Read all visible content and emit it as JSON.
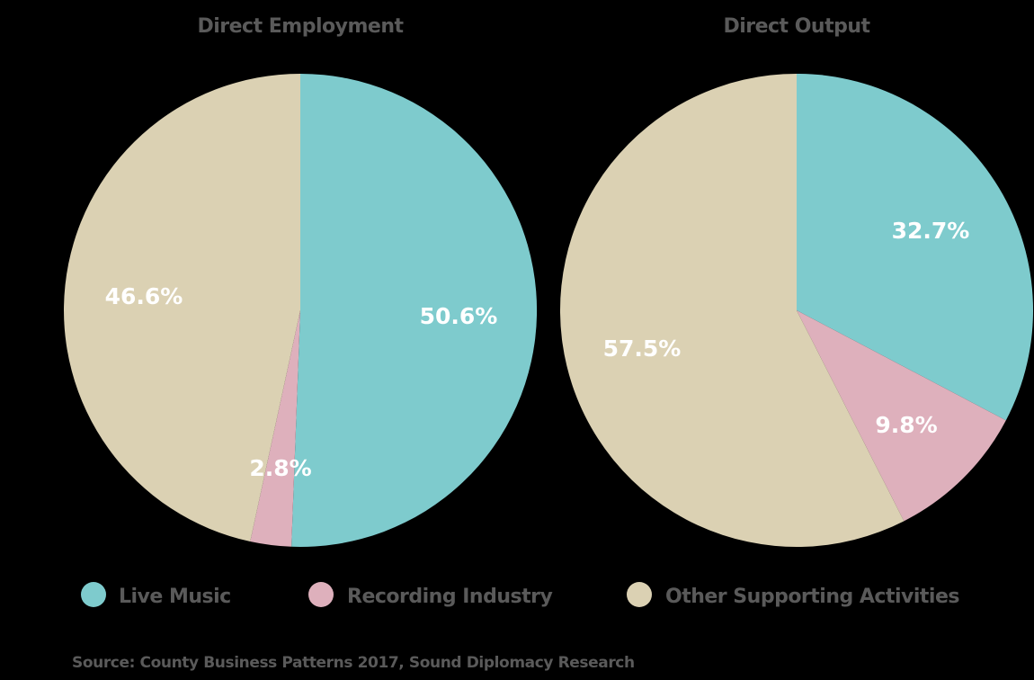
{
  "chart_data": [
    {
      "type": "pie",
      "title": "Direct Employment",
      "slices": [
        {
          "label": "Live Music",
          "value": 50.6,
          "display": "50.6%",
          "color": "#7ecbcd"
        },
        {
          "label": "Recording Industry",
          "value": 2.8,
          "display": "2.8%",
          "color": "#deb0bc"
        },
        {
          "label": "Other Supporting Activities",
          "value": 46.6,
          "display": "46.6%",
          "color": "#dbd1b3"
        }
      ]
    },
    {
      "type": "pie",
      "title": "Direct Output",
      "slices": [
        {
          "label": "Live Music",
          "value": 32.7,
          "display": "32.7%",
          "color": "#7ecbcd"
        },
        {
          "label": "Recording Industry",
          "value": 9.8,
          "display": "9.8%",
          "color": "#deb0bc"
        },
        {
          "label": "Other Supporting Activities",
          "value": 57.5,
          "display": "57.5%",
          "color": "#dbd1b3"
        }
      ]
    }
  ],
  "legend": [
    {
      "label": "Live Music",
      "color": "#7ecbcd"
    },
    {
      "label": "Recording Industry",
      "color": "#deb0bc"
    },
    {
      "label": "Other Supporting Activities",
      "color": "#dbd1b3"
    }
  ],
  "source": "Source: County Business Patterns 2017, Sound Diplomacy Research",
  "colors": {
    "background": "#000000",
    "text": "#5a5a5a",
    "slice_label": "#ffffff"
  }
}
